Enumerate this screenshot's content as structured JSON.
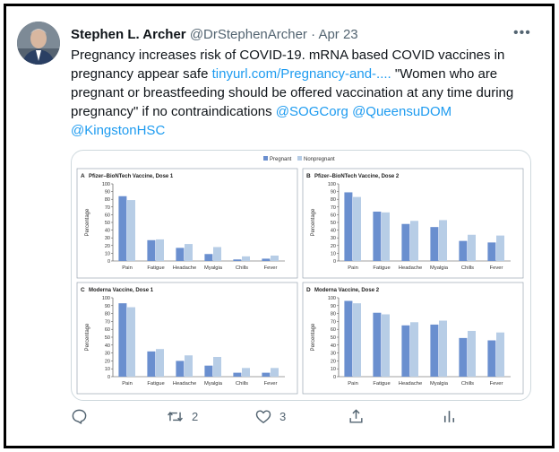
{
  "tweet": {
    "author_name": "Stephen L. Archer",
    "handle": "@DrStephenArcher",
    "separator": "·",
    "date": "Apr 23",
    "more_label": "•••",
    "text_1": "Pregnancy increases risk of COVID-19. mRNA based COVID vaccines in pregnancy appear safe ",
    "link": "tinyurl.com/Pregnancy-and-....",
    "text_2": " \"Women who are pregnant or breastfeeding should be offered vaccination at any time during pregnancy\" if no contraindications ",
    "mention_1": "@SOGCorg",
    "mention_2": "@QueensuDOM",
    "mention_3": "@KingstonHSC"
  },
  "actions": {
    "reply_icon": "reply-icon",
    "retweet_icon": "retweet-icon",
    "retweet_count": "2",
    "like_icon": "heart-icon",
    "like_count": "3",
    "share_icon": "share-icon",
    "analytics_icon": "analytics-icon"
  },
  "colors": {
    "link": "#1d9bf0",
    "pregnant": "#6a8fcf",
    "nonpregnant": "#b7cde6"
  },
  "legend": {
    "pregnant": "Pregnant",
    "nonpregnant": "Nonpregnant"
  },
  "chart_data": [
    {
      "type": "bar",
      "panel": "A",
      "title": "Pfizer–BioNTech Vaccine, Dose 1",
      "ylabel": "Percentage",
      "ylim": [
        0,
        100
      ],
      "yticks": [
        0,
        10,
        20,
        30,
        40,
        50,
        60,
        70,
        80,
        90,
        100
      ],
      "categories": [
        "Pain",
        "Fatigue",
        "Headache",
        "Myalgia",
        "Chills",
        "Fever"
      ],
      "series": [
        {
          "name": "Pregnant",
          "values": [
            84,
            27,
            17,
            9,
            2,
            3
          ]
        },
        {
          "name": "Nonpregnant",
          "values": [
            79,
            28,
            22,
            18,
            6,
            7
          ]
        }
      ]
    },
    {
      "type": "bar",
      "panel": "B",
      "title": "Pfizer–BioNTech Vaccine, Dose 2",
      "ylabel": "Percentage",
      "ylim": [
        0,
        100
      ],
      "yticks": [
        0,
        10,
        20,
        30,
        40,
        50,
        60,
        70,
        80,
        90,
        100
      ],
      "categories": [
        "Pain",
        "Fatigue",
        "Headache",
        "Myalgia",
        "Chills",
        "Fever"
      ],
      "series": [
        {
          "name": "Pregnant",
          "values": [
            89,
            64,
            48,
            44,
            26,
            24
          ]
        },
        {
          "name": "Nonpregnant",
          "values": [
            83,
            63,
            52,
            53,
            34,
            33
          ]
        }
      ]
    },
    {
      "type": "bar",
      "panel": "C",
      "title": "Moderna Vaccine, Dose 1",
      "ylabel": "Percentage",
      "ylim": [
        0,
        100
      ],
      "yticks": [
        0,
        10,
        20,
        30,
        40,
        50,
        60,
        70,
        80,
        90,
        100
      ],
      "categories": [
        "Pain",
        "Fatigue",
        "Headache",
        "Myalgia",
        "Chills",
        "Fever"
      ],
      "series": [
        {
          "name": "Pregnant",
          "values": [
            93,
            32,
            20,
            14,
            5,
            5
          ]
        },
        {
          "name": "Nonpregnant",
          "values": [
            88,
            35,
            27,
            25,
            11,
            11
          ]
        }
      ]
    },
    {
      "type": "bar",
      "panel": "D",
      "title": "Moderna Vaccine, Dose 2",
      "ylabel": "Percentage",
      "ylim": [
        0,
        100
      ],
      "yticks": [
        0,
        10,
        20,
        30,
        40,
        50,
        60,
        70,
        80,
        90,
        100
      ],
      "categories": [
        "Pain",
        "Fatigue",
        "Headache",
        "Myalgia",
        "Chills",
        "Fever"
      ],
      "series": [
        {
          "name": "Pregnant",
          "values": [
            96,
            81,
            65,
            66,
            49,
            46
          ]
        },
        {
          "name": "Nonpregnant",
          "values": [
            93,
            79,
            69,
            71,
            58,
            56
          ]
        }
      ]
    }
  ]
}
